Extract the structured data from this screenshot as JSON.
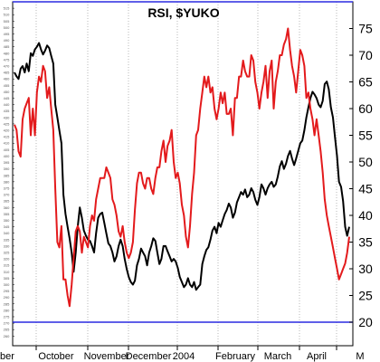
{
  "chart_data": {
    "type": "line",
    "title": "RSI, $YUKO",
    "xlabel": "",
    "ylabel": "",
    "x_tick_labels": [
      "ber",
      "October",
      "November",
      "December",
      "2004",
      "February",
      "March",
      "April",
      "M"
    ],
    "y_right": {
      "ylim": [
        15,
        80
      ],
      "ticks": [
        20,
        25,
        30,
        35,
        40,
        45,
        50,
        55,
        60,
        65,
        70,
        75
      ],
      "reference_lines": [
        20,
        80
      ],
      "reference_color": "#2a2ae0"
    },
    "y_left": {
      "ylim": [
        250,
        520
      ],
      "tick_step": 5,
      "note": "dense unreadable price scale on the left axis"
    },
    "grid": "vertical dotted at month boundaries",
    "series": [
      {
        "color": "#000000",
        "axis": "left",
        "values": [
          465,
          462,
          460,
          468,
          470,
          465,
          472,
          466,
          480,
          478,
          483,
          485,
          488,
          483,
          479,
          482,
          486,
          484,
          478,
          472,
          440,
          430,
          420,
          410,
          370,
          355,
          345,
          336,
          325,
          310,
          325,
          345,
          360,
          352,
          342,
          338,
          335,
          334,
          330,
          325,
          340,
          352,
          355,
          356,
          348,
          340,
          332,
          330,
          325,
          318,
          322,
          330,
          335,
          330,
          320,
          312,
          306,
          302,
          300,
          303,
          315,
          320,
          328,
          325,
          322,
          315,
          325,
          330,
          336,
          334,
          325,
          316,
          320,
          330,
          330,
          326,
          322,
          318,
          320,
          318,
          313,
          306,
          302,
          298,
          300,
          305,
          300,
          298,
          302,
          296,
          298,
          300,
          316,
          322,
          327,
          329,
          335,
          342,
          345,
          340,
          348,
          345,
          350,
          355,
          358,
          363,
          360,
          352,
          356,
          364,
          368,
          372,
          370,
          374,
          368,
          370,
          375,
          372,
          366,
          362,
          368,
          378,
          375,
          370,
          375,
          378,
          380,
          376,
          378,
          384,
          392,
          396,
          390,
          394,
          400,
          404,
          398,
          393,
          398,
          404,
          410,
          412,
          420,
          430,
          438,
          445,
          450,
          448,
          445,
          440,
          438,
          443,
          456,
          458,
          452,
          438,
          430,
          415,
          400,
          380,
          376,
          365,
          345,
          338,
          345
        ]
      },
      {
        "color": "#e31a1c",
        "axis": "right",
        "values": [
          57,
          56,
          52,
          51,
          58,
          60,
          61,
          62,
          55,
          60,
          55,
          63,
          66,
          65,
          68,
          67,
          62,
          64,
          60,
          56,
          45,
          35,
          34,
          38,
          28,
          28,
          25,
          23,
          27,
          32,
          37,
          38,
          37,
          33,
          36,
          35,
          34,
          38,
          40,
          39,
          43,
          45,
          47,
          47,
          47,
          49,
          48,
          47,
          43,
          42,
          40,
          37,
          36,
          38,
          35,
          33,
          32,
          33,
          35,
          41,
          46,
          48,
          48,
          46,
          45,
          47,
          47,
          45,
          44,
          47,
          49,
          49,
          52,
          54,
          50,
          53,
          54,
          56,
          50,
          47,
          48,
          46,
          42,
          40,
          36,
          34,
          38,
          44,
          48,
          55,
          56,
          60,
          63,
          66,
          64,
          66,
          63,
          64,
          60,
          58,
          60,
          63,
          61,
          63,
          59,
          59,
          60,
          55,
          62,
          62,
          66,
          66,
          69,
          67,
          66,
          66,
          70,
          69,
          65,
          63,
          60,
          63,
          65,
          68,
          62,
          67,
          69,
          60,
          65,
          67,
          70,
          70,
          72,
          73,
          75,
          71,
          68,
          66,
          63,
          67,
          71,
          70,
          68,
          62,
          63,
          60,
          58,
          55,
          58,
          55,
          52,
          48,
          43,
          40,
          38,
          36,
          34,
          32,
          30,
          28,
          29,
          30,
          31,
          33,
          36
        ]
      }
    ]
  }
}
